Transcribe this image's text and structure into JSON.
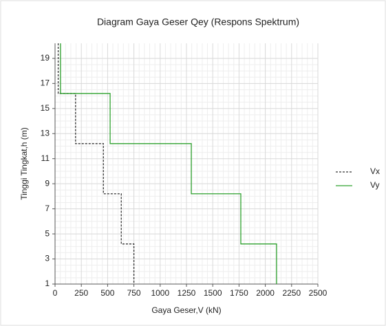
{
  "chart_data": {
    "type": "line",
    "title": "Diagram Gaya Geser Qey (Respons Spektrum)",
    "x_label": "Gaya Geser,V (kN)",
    "y_label": "Tinggi  Tingkat,h  (m)",
    "xlim": [
      0,
      2500
    ],
    "xticks": [
      0,
      250,
      500,
      750,
      1000,
      1250,
      1500,
      1750,
      2000,
      2250,
      2500
    ],
    "ylim": [
      1,
      20.2
    ],
    "yticks": [
      1,
      3,
      5,
      7,
      9,
      11,
      13,
      15,
      17,
      19
    ],
    "grid": true,
    "legend": "right",
    "series": [
      {
        "name": "Vx",
        "color": "#333333",
        "dash": true,
        "x": [
          30,
          30,
          195,
          195,
          460,
          460,
          630,
          630,
          750,
          750
        ],
        "values": [
          20.2,
          16.2,
          16.2,
          12.2,
          12.2,
          8.2,
          8.2,
          4.2,
          4.2,
          1
        ]
      },
      {
        "name": "Vy",
        "color": "#2ca02c",
        "dash": false,
        "x": [
          52,
          52,
          524,
          524,
          1296,
          1296,
          1767,
          1767,
          2107,
          2107
        ],
        "values": [
          20.2,
          16.2,
          16.2,
          12.2,
          12.2,
          8.2,
          8.2,
          4.2,
          4.2,
          1
        ]
      }
    ]
  }
}
